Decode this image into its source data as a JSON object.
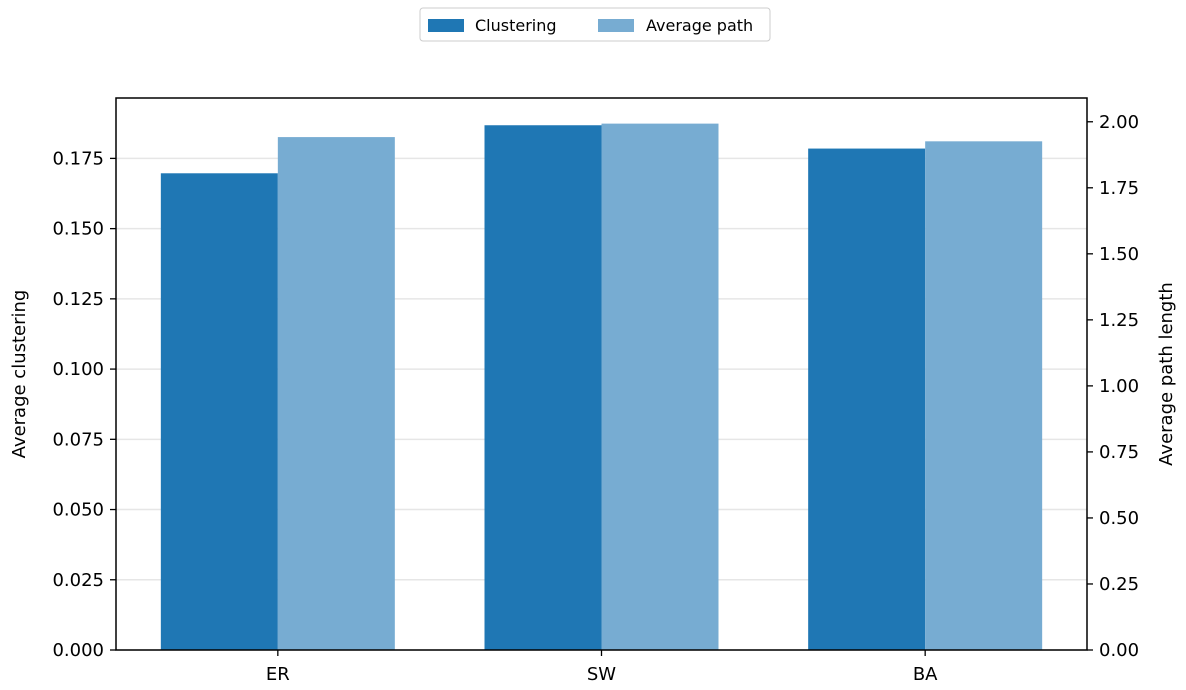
{
  "chart_data": {
    "type": "bar",
    "categories": [
      "ER",
      "SW",
      "BA"
    ],
    "series": [
      {
        "name": "Clustering",
        "axis": "left",
        "color": "#1f77b4",
        "values": [
          0.1697,
          0.1868,
          0.1785
        ]
      },
      {
        "name": "Average path",
        "axis": "right",
        "color": "#77acd2",
        "values": [
          1.942,
          1.993,
          1.926
        ]
      }
    ],
    "ylabel_left": "Average clustering",
    "ylabel_right": "Average path length",
    "ylim_left": [
      0,
      0.1965
    ],
    "ylim_right": [
      0,
      2.09
    ],
    "yticks_left": [
      "0.000",
      "0.025",
      "0.050",
      "0.075",
      "0.100",
      "0.125",
      "0.150",
      "0.175"
    ],
    "yticks_right": [
      "0.00",
      "0.25",
      "0.50",
      "0.75",
      "1.00",
      "1.25",
      "1.50",
      "1.75",
      "2.00"
    ],
    "grid": "horizontal",
    "legend_placement": "top-center"
  }
}
